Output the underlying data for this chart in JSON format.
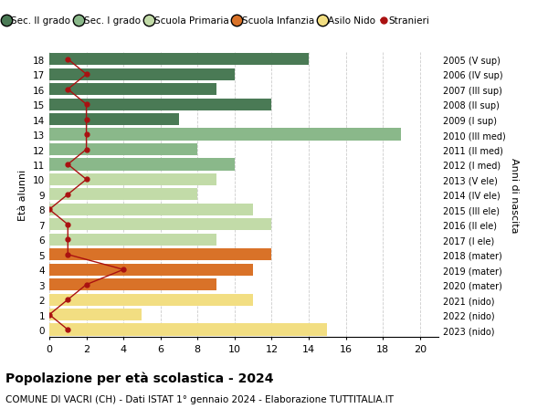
{
  "ages": [
    18,
    17,
    16,
    15,
    14,
    13,
    12,
    11,
    10,
    9,
    8,
    7,
    6,
    5,
    4,
    3,
    2,
    1,
    0
  ],
  "years": [
    "2005 (V sup)",
    "2006 (IV sup)",
    "2007 (III sup)",
    "2008 (II sup)",
    "2009 (I sup)",
    "2010 (III med)",
    "2011 (II med)",
    "2012 (I med)",
    "2013 (V ele)",
    "2014 (IV ele)",
    "2015 (III ele)",
    "2016 (II ele)",
    "2017 (I ele)",
    "2018 (mater)",
    "2019 (mater)",
    "2020 (mater)",
    "2021 (nido)",
    "2022 (nido)",
    "2023 (nido)"
  ],
  "bar_values": [
    14,
    10,
    9,
    12,
    7,
    19,
    8,
    10,
    9,
    8,
    11,
    12,
    9,
    12,
    11,
    9,
    11,
    5,
    15
  ],
  "bar_colors": [
    "#4a7a55",
    "#4a7a55",
    "#4a7a55",
    "#4a7a55",
    "#4a7a55",
    "#8ab88a",
    "#8ab88a",
    "#8ab88a",
    "#c2dba8",
    "#c2dba8",
    "#c2dba8",
    "#c2dba8",
    "#c2dba8",
    "#d97228",
    "#d97228",
    "#d97228",
    "#f2de82",
    "#f2de82",
    "#f2de82"
  ],
  "stranieri_values": [
    1,
    2,
    1,
    2,
    2,
    2,
    2,
    1,
    2,
    1,
    0,
    1,
    1,
    1,
    4,
    2,
    1,
    0,
    1
  ],
  "stranieri_color": "#aa1111",
  "legend_labels": [
    "Sec. II grado",
    "Sec. I grado",
    "Scuola Primaria",
    "Scuola Infanzia",
    "Asilo Nido",
    "Stranieri"
  ],
  "legend_colors": [
    "#4a7a55",
    "#8ab88a",
    "#c2dba8",
    "#d97228",
    "#f2de82",
    "#aa1111"
  ],
  "title_bold": "Popolazione per età scolastica - 2024",
  "subtitle": "COMUNE DI VACRI (CH) - Dati ISTAT 1° gennaio 2024 - Elaborazione TUTTITALIA.IT",
  "ylabel_left": "Età alunni",
  "ylabel_right": "Anni di nascita",
  "xlim": [
    0,
    21
  ],
  "xticks": [
    0,
    2,
    4,
    6,
    8,
    10,
    12,
    14,
    16,
    18,
    20
  ],
  "background_color": "#ffffff",
  "plot_bg_color": "#ffffff",
  "grid_color": "#cccccc"
}
